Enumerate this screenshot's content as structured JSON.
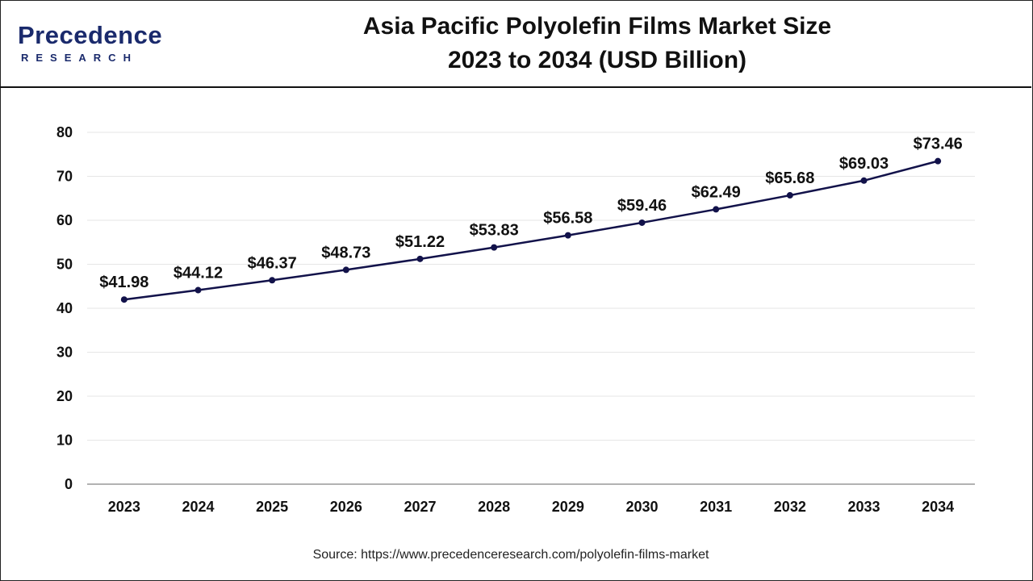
{
  "logo": {
    "main": "Precedence",
    "sub": "RESEARCH"
  },
  "title": {
    "line1": "Asia Pacific Polyolefin Films Market Size",
    "line2": "2023 to 2034 (USD Billion)"
  },
  "source_text": "Source: https://www.precedenceresearch.com/polyolefin-films-market",
  "colors": {
    "line": "#12124a",
    "grid": "#e6e6e6",
    "axis": "#999999"
  },
  "chart_data": {
    "type": "line",
    "title": "Asia Pacific Polyolefin Films Market Size 2023 to 2034 (USD Billion)",
    "categories": [
      "2023",
      "2024",
      "2025",
      "2026",
      "2027",
      "2028",
      "2029",
      "2030",
      "2031",
      "2032",
      "2033",
      "2034"
    ],
    "values": [
      41.98,
      44.12,
      46.37,
      48.73,
      51.22,
      53.83,
      56.58,
      59.46,
      62.49,
      65.68,
      69.03,
      73.46
    ],
    "data_labels": [
      "$41.98",
      "$44.12",
      "$46.37",
      "$48.73",
      "$51.22",
      "$53.83",
      "$56.58",
      "$59.46",
      "$62.49",
      "$65.68",
      "$69.03",
      "$73.46"
    ],
    "yticks": [
      0,
      10,
      20,
      30,
      40,
      50,
      60,
      70,
      80
    ],
    "ylim": [
      0,
      80
    ],
    "xlabel": "",
    "ylabel": "",
    "grid": true,
    "legend": "none"
  }
}
